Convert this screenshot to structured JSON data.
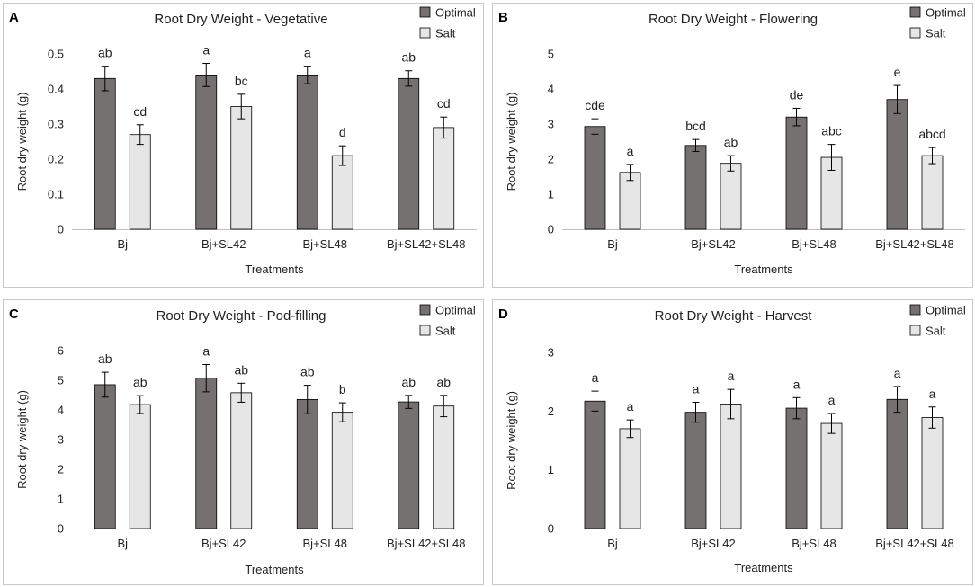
{
  "colors": {
    "optimal": "#767171",
    "salt": "#e7e6e6",
    "border": "#c8c8c8",
    "axis": "#bfbfbf",
    "errorbar": "#000000"
  },
  "chart_data": [
    {
      "panel": "A",
      "type": "bar",
      "title": "Root Dry Weight - Vegetative",
      "xlabel": "Treatments",
      "ylabel": "Root dry weight (g)",
      "categories": [
        "Bj",
        "Bj+SL42",
        "Bj+SL48",
        "Bj+SL42+SL48"
      ],
      "ylim": [
        0,
        0.5
      ],
      "yticks": [
        "0",
        "0.1",
        "0.2",
        "0.3",
        "0.4",
        "0.5"
      ],
      "series": [
        {
          "name": "Optimal",
          "values": [
            0.43,
            0.44,
            0.44,
            0.43
          ],
          "errors": [
            0.035,
            0.033,
            0.025,
            0.022
          ],
          "labels": [
            "ab",
            "a",
            "a",
            "ab"
          ]
        },
        {
          "name": "Salt",
          "values": [
            0.27,
            0.35,
            0.21,
            0.29
          ],
          "errors": [
            0.028,
            0.035,
            0.028,
            0.03
          ],
          "labels": [
            "cd",
            "bc",
            "d",
            "cd"
          ]
        }
      ]
    },
    {
      "panel": "B",
      "type": "bar",
      "title": "Root Dry Weight - Flowering",
      "xlabel": "Treatments",
      "ylabel": "Root dry weight (g)",
      "categories": [
        "Bj",
        "Bj+SL42",
        "Bj+SL48",
        "Bj+SL42+SL48"
      ],
      "ylim": [
        0,
        5
      ],
      "yticks": [
        "0",
        "1",
        "2",
        "3",
        "4",
        "5"
      ],
      "series": [
        {
          "name": "Optimal",
          "values": [
            2.93,
            2.39,
            3.2,
            3.7
          ],
          "errors": [
            0.22,
            0.17,
            0.25,
            0.4
          ],
          "labels": [
            "cde",
            "bcd",
            "de",
            "e"
          ]
        },
        {
          "name": "Salt",
          "values": [
            1.62,
            1.88,
            2.05,
            2.1
          ],
          "errors": [
            0.23,
            0.22,
            0.37,
            0.23
          ],
          "labels": [
            "a",
            "ab",
            "abc",
            "abcd"
          ]
        }
      ]
    },
    {
      "panel": "C",
      "type": "bar",
      "title": "Root Dry Weight - Pod-filling",
      "xlabel": "Treatments",
      "ylabel": "Root dry weight (g)",
      "categories": [
        "Bj",
        "Bj+SL42",
        "Bj+SL48",
        "Bj+SL42+SL48"
      ],
      "ylim": [
        0,
        6
      ],
      "yticks": [
        "0",
        "1",
        "2",
        "3",
        "4",
        "5",
        "6"
      ],
      "series": [
        {
          "name": "Optimal",
          "values": [
            4.85,
            5.07,
            4.35,
            4.27
          ],
          "errors": [
            0.42,
            0.46,
            0.48,
            0.22
          ],
          "labels": [
            "ab",
            "a",
            "ab",
            "ab"
          ]
        },
        {
          "name": "Salt",
          "values": [
            4.18,
            4.58,
            3.92,
            4.13
          ],
          "errors": [
            0.3,
            0.32,
            0.32,
            0.36
          ],
          "labels": [
            "ab",
            "ab",
            "b",
            "ab"
          ]
        }
      ]
    },
    {
      "panel": "D",
      "type": "bar",
      "title": "Root Dry Weight - Harvest",
      "xlabel": "Treatments",
      "ylabel": "Root dry weight (g)",
      "categories": [
        "Bj",
        "Bj+SL42",
        "Bj+SL48",
        "Bj+SL42+SL48"
      ],
      "ylim": [
        0,
        3
      ],
      "yticks": [
        "0",
        "1",
        "2",
        "3"
      ],
      "series": [
        {
          "name": "Optimal",
          "values": [
            2.17,
            1.98,
            2.05,
            2.2
          ],
          "errors": [
            0.17,
            0.17,
            0.18,
            0.22
          ],
          "labels": [
            "a",
            "a",
            "a",
            "a"
          ]
        },
        {
          "name": "Salt",
          "values": [
            1.7,
            2.12,
            1.79,
            1.89
          ],
          "errors": [
            0.15,
            0.25,
            0.17,
            0.18
          ],
          "labels": [
            "a",
            "a",
            "a",
            "a"
          ]
        }
      ]
    }
  ]
}
